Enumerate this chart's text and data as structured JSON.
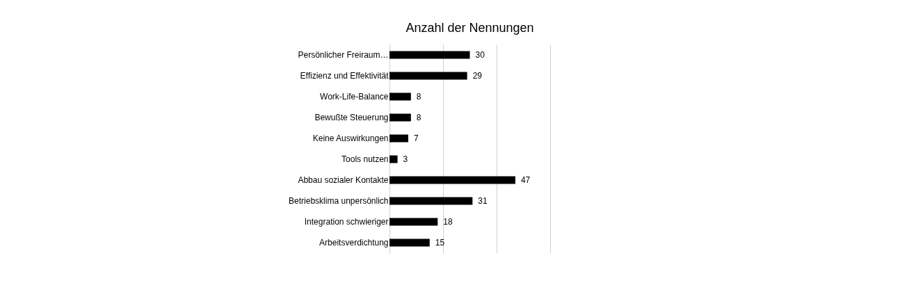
{
  "chart_data": {
    "type": "bar",
    "orientation": "horizontal",
    "title": "Anzahl der Nennungen",
    "categories": [
      "Persönlicher Freiraum…",
      "Effizienz und Effektivität",
      "Work-Life-Balance",
      "Bewußte Steuerung",
      "Keine Auswirkungen",
      "Tools nutzen",
      "Abbau sozialer Kontakte",
      "Betriebsklima unpersönlich",
      "Integration schwieriger",
      "Arbeitsverdichtung"
    ],
    "values": [
      30,
      29,
      8,
      8,
      7,
      3,
      47,
      31,
      18,
      15
    ],
    "color": "#000000",
    "xlim": [
      0,
      60
    ],
    "xticks": [
      {
        "value": 0,
        "label": null
      },
      {
        "value": 20,
        "label": null
      },
      {
        "value": 40,
        "label": null
      },
      {
        "value": 60,
        "label": null
      }
    ],
    "tick_labels": "y",
    "grid": "x",
    "data_labels": true
  }
}
